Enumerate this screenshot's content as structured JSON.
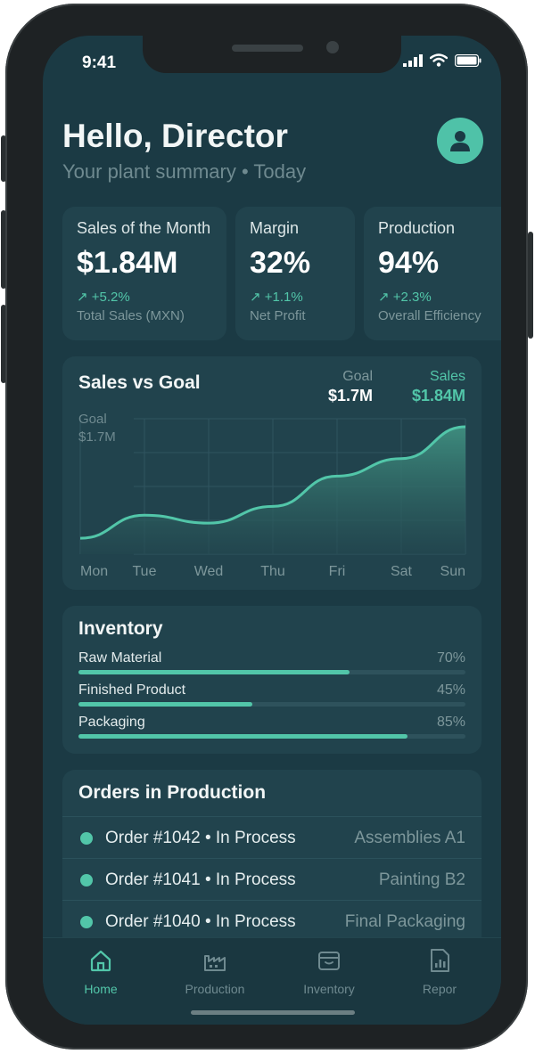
{
  "status_bar": {
    "time": "9:41"
  },
  "header": {
    "greeting": "Hello, Director",
    "subtitle": "Your plant summary • Today"
  },
  "kpis": [
    {
      "label": "Sales of the Month",
      "value": "$1.84M",
      "change": "↗ +5.2%",
      "caption": "Total Sales (MXN)"
    },
    {
      "label": "Margin",
      "value": "32%",
      "change": "↗ +1.1%",
      "caption": "Net Profit"
    },
    {
      "label": "Production",
      "value": "94%",
      "change": "↗ +2.3%",
      "caption": "Overall Efficiency"
    }
  ],
  "sales_chart": {
    "title": "Sales vs Goal",
    "goal_legend": {
      "name": "Goal",
      "value": "$1.7M"
    },
    "sales_legend": {
      "name": "Sales",
      "value": "$1.84M"
    },
    "goal_line_label_1": "Goal",
    "goal_line_label_2": "$1.7M",
    "colors": {
      "accent": "#52c6a9",
      "area_top": "#3f8f80",
      "area_bottom": "#23474f",
      "grid": "#2f5560"
    }
  },
  "chart_data": {
    "type": "area",
    "title": "Sales vs Goal",
    "categories": [
      "Mon",
      "Tue",
      "Wed",
      "Thu",
      "Fri",
      "Sat",
      "Sun"
    ],
    "series": [
      {
        "name": "Sales",
        "values": [
          0.2,
          0.49,
          0.39,
          0.6,
          0.98,
          1.2,
          1.6
        ]
      }
    ],
    "ylim": [
      0,
      1.7
    ],
    "grid": true,
    "legend": "top-right"
  },
  "inventory": {
    "title": "Inventory",
    "items": [
      {
        "name": "Raw Material",
        "percent_label": "70%",
        "fraction": 0.7
      },
      {
        "name": "Finished Product",
        "percent_label": "45%",
        "fraction": 0.45
      },
      {
        "name": "Packaging",
        "percent_label": "85%",
        "fraction": 0.85
      }
    ]
  },
  "orders": {
    "title": "Orders in Production",
    "items": [
      {
        "text": "Order #1042 • In Process",
        "area": "Assemblies A1"
      },
      {
        "text": "Order #1041 • In Process",
        "area": "Painting B2"
      },
      {
        "text": "Order #1040 • In Process",
        "area": "Final Packaging"
      }
    ]
  },
  "tabbar": {
    "items": [
      {
        "label": "Home",
        "icon": "home-icon",
        "active": true
      },
      {
        "label": "Production",
        "icon": "factory-icon",
        "active": false
      },
      {
        "label": "Inventory",
        "icon": "box-icon",
        "active": false
      },
      {
        "label": "Repor",
        "icon": "report-icon",
        "active": false
      }
    ]
  }
}
